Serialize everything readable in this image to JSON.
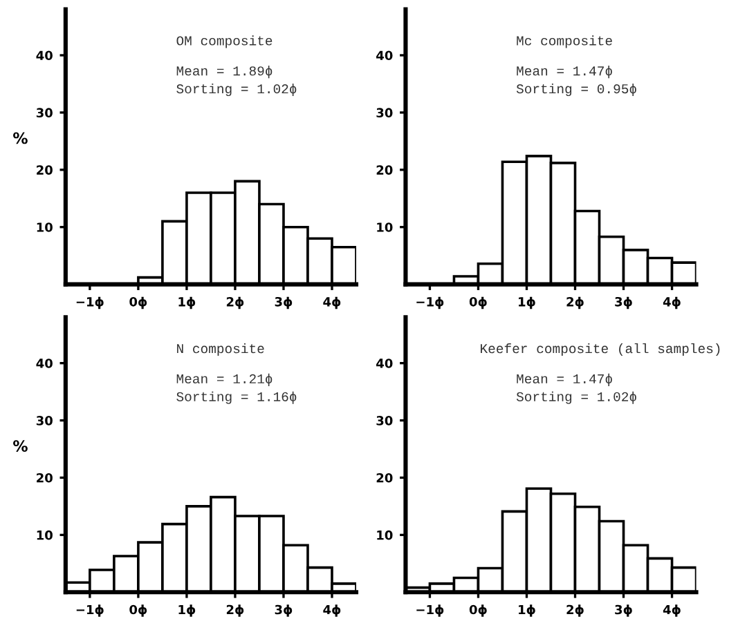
{
  "chart_data": [
    {
      "type": "histogram",
      "title": "OM composite",
      "ylabel": "%",
      "annotations": [
        "Mean = 1.89ϕ",
        "Sorting = 1.02ϕ"
      ],
      "bins": [
        -1.5,
        -1,
        -0.5,
        0,
        0.5,
        1,
        1.5,
        2,
        2.5,
        3,
        3.5,
        4,
        4.5
      ],
      "values": [
        null,
        null,
        null,
        1.2,
        11,
        16,
        16,
        18,
        14,
        10,
        8,
        6.5
      ],
      "color": "#ffffff",
      "xlim": [
        -1.5,
        4.5
      ],
      "ylim": [
        0,
        48
      ],
      "xticks": [
        {
          "value": -1,
          "label": "−1ϕ"
        },
        {
          "value": 0,
          "label": "0ϕ"
        },
        {
          "value": 1,
          "label": "1ϕ"
        },
        {
          "value": 2,
          "label": "2ϕ"
        },
        {
          "value": 3,
          "label": "3ϕ"
        },
        {
          "value": 4,
          "label": "4ϕ"
        }
      ],
      "yticks": [
        10,
        20,
        30,
        40
      ],
      "grid": false
    },
    {
      "type": "histogram",
      "title": "Mc composite",
      "annotations": [
        "Mean = 1.47ϕ",
        "Sorting = 0.95ϕ"
      ],
      "bins": [
        -1.5,
        -1,
        -0.5,
        0,
        0.5,
        1,
        1.5,
        2,
        2.5,
        3,
        3.5,
        4,
        4.5
      ],
      "values": [
        null,
        null,
        1.4,
        3.6,
        21.4,
        22.4,
        21.2,
        12.8,
        8.3,
        6,
        4.6,
        3.8
      ],
      "color": "#ffffff",
      "xlim": [
        -1.5,
        4.5
      ],
      "ylim": [
        0,
        48
      ],
      "xticks": [
        {
          "value": -1,
          "label": "−1ϕ"
        },
        {
          "value": 0,
          "label": "0ϕ"
        },
        {
          "value": 1,
          "label": "1ϕ"
        },
        {
          "value": 2,
          "label": "2ϕ"
        },
        {
          "value": 3,
          "label": "3ϕ"
        },
        {
          "value": 4,
          "label": "4ϕ"
        }
      ],
      "yticks": [
        10,
        20,
        30,
        40
      ],
      "grid": false
    },
    {
      "type": "histogram",
      "title": "N composite",
      "ylabel": "%",
      "annotations": [
        "Mean = 1.21ϕ",
        "Sorting = 1.16ϕ"
      ],
      "bins": [
        -1.5,
        -1,
        -0.5,
        0,
        0.5,
        1,
        1.5,
        2,
        2.5,
        3,
        3.5,
        4,
        4.5
      ],
      "values": [
        1.7,
        3.9,
        6.3,
        8.7,
        11.9,
        15,
        16.6,
        13.3,
        13.3,
        8.2,
        4.3,
        1.5
      ],
      "color": "#ffffff",
      "xlim": [
        -1.5,
        4.5
      ],
      "ylim": [
        0,
        48
      ],
      "xticks": [
        {
          "value": -1,
          "label": "−1ϕ"
        },
        {
          "value": 0,
          "label": "0ϕ"
        },
        {
          "value": 1,
          "label": "1ϕ"
        },
        {
          "value": 2,
          "label": "2ϕ"
        },
        {
          "value": 3,
          "label": "3ϕ"
        },
        {
          "value": 4,
          "label": "4ϕ"
        }
      ],
      "yticks": [
        10,
        20,
        30,
        40
      ],
      "grid": false
    },
    {
      "type": "histogram",
      "title": "Keefer composite (all samples)",
      "annotations": [
        "Mean = 1.47ϕ",
        "Sorting = 1.02ϕ"
      ],
      "bins": [
        -1.5,
        -1,
        -0.5,
        0,
        0.5,
        1,
        1.5,
        2,
        2.5,
        3,
        3.5,
        4,
        4.5
      ],
      "values": [
        0.8,
        1.5,
        2.5,
        4.2,
        14.1,
        18.1,
        17.2,
        14.9,
        12.4,
        8.2,
        5.9,
        4.3
      ],
      "color": "#ffffff",
      "xlim": [
        -1.5,
        4.5
      ],
      "ylim": [
        0,
        48
      ],
      "xticks": [
        {
          "value": -1,
          "label": "−1ϕ"
        },
        {
          "value": 0,
          "label": "0ϕ"
        },
        {
          "value": 1,
          "label": "1ϕ"
        },
        {
          "value": 2,
          "label": "2ϕ"
        },
        {
          "value": 3,
          "label": "3ϕ"
        },
        {
          "value": 4,
          "label": "4ϕ"
        }
      ],
      "yticks": [
        10,
        20,
        30,
        40
      ],
      "grid": false
    }
  ]
}
